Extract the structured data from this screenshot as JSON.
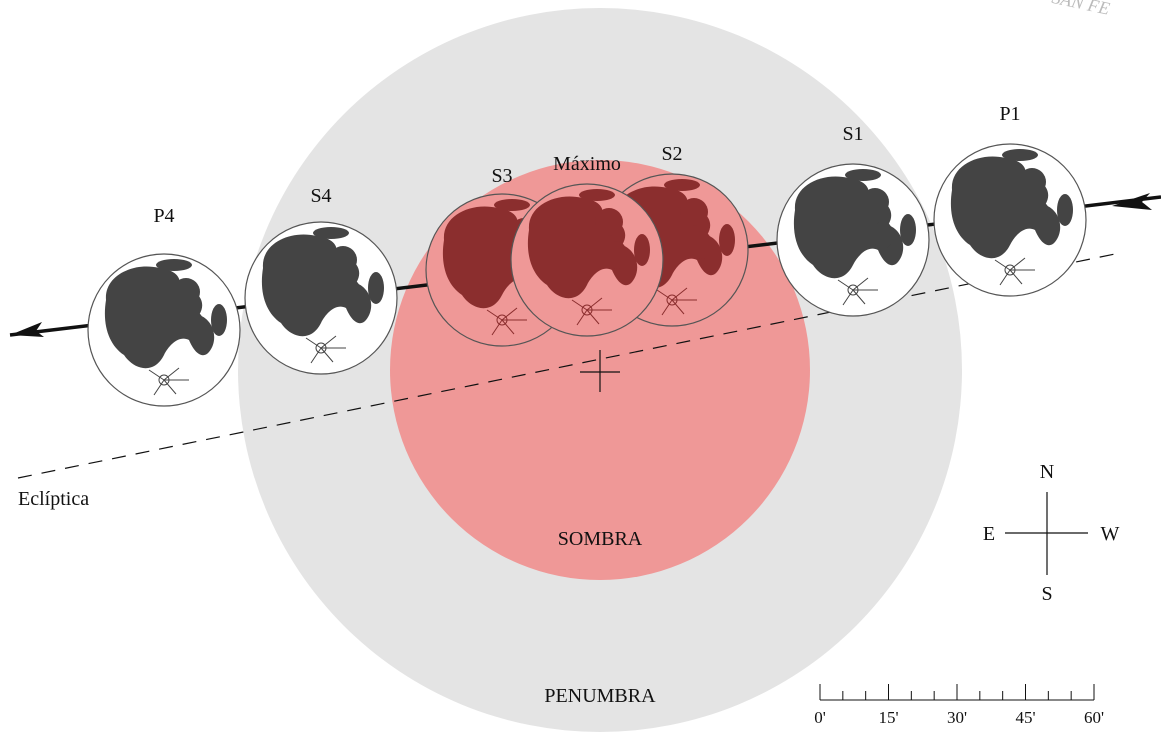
{
  "watermark": "SAN FE",
  "moons": [
    {
      "label": "P4"
    },
    {
      "label": "S4"
    },
    {
      "label": "S3"
    },
    {
      "label": "S2"
    },
    {
      "label": "Máximo"
    },
    {
      "label": "S1"
    },
    {
      "label": "P1"
    }
  ],
  "ecliptic_label": "Eclíptica",
  "umbra_label": "SOMBRA",
  "penumbra_label": "PENUMBRA",
  "compass": {
    "north": "N",
    "east": "E",
    "west": "W",
    "south": "S"
  },
  "scale": {
    "labels": [
      "0'",
      "15'",
      "30'",
      "45'",
      "60'"
    ]
  }
}
